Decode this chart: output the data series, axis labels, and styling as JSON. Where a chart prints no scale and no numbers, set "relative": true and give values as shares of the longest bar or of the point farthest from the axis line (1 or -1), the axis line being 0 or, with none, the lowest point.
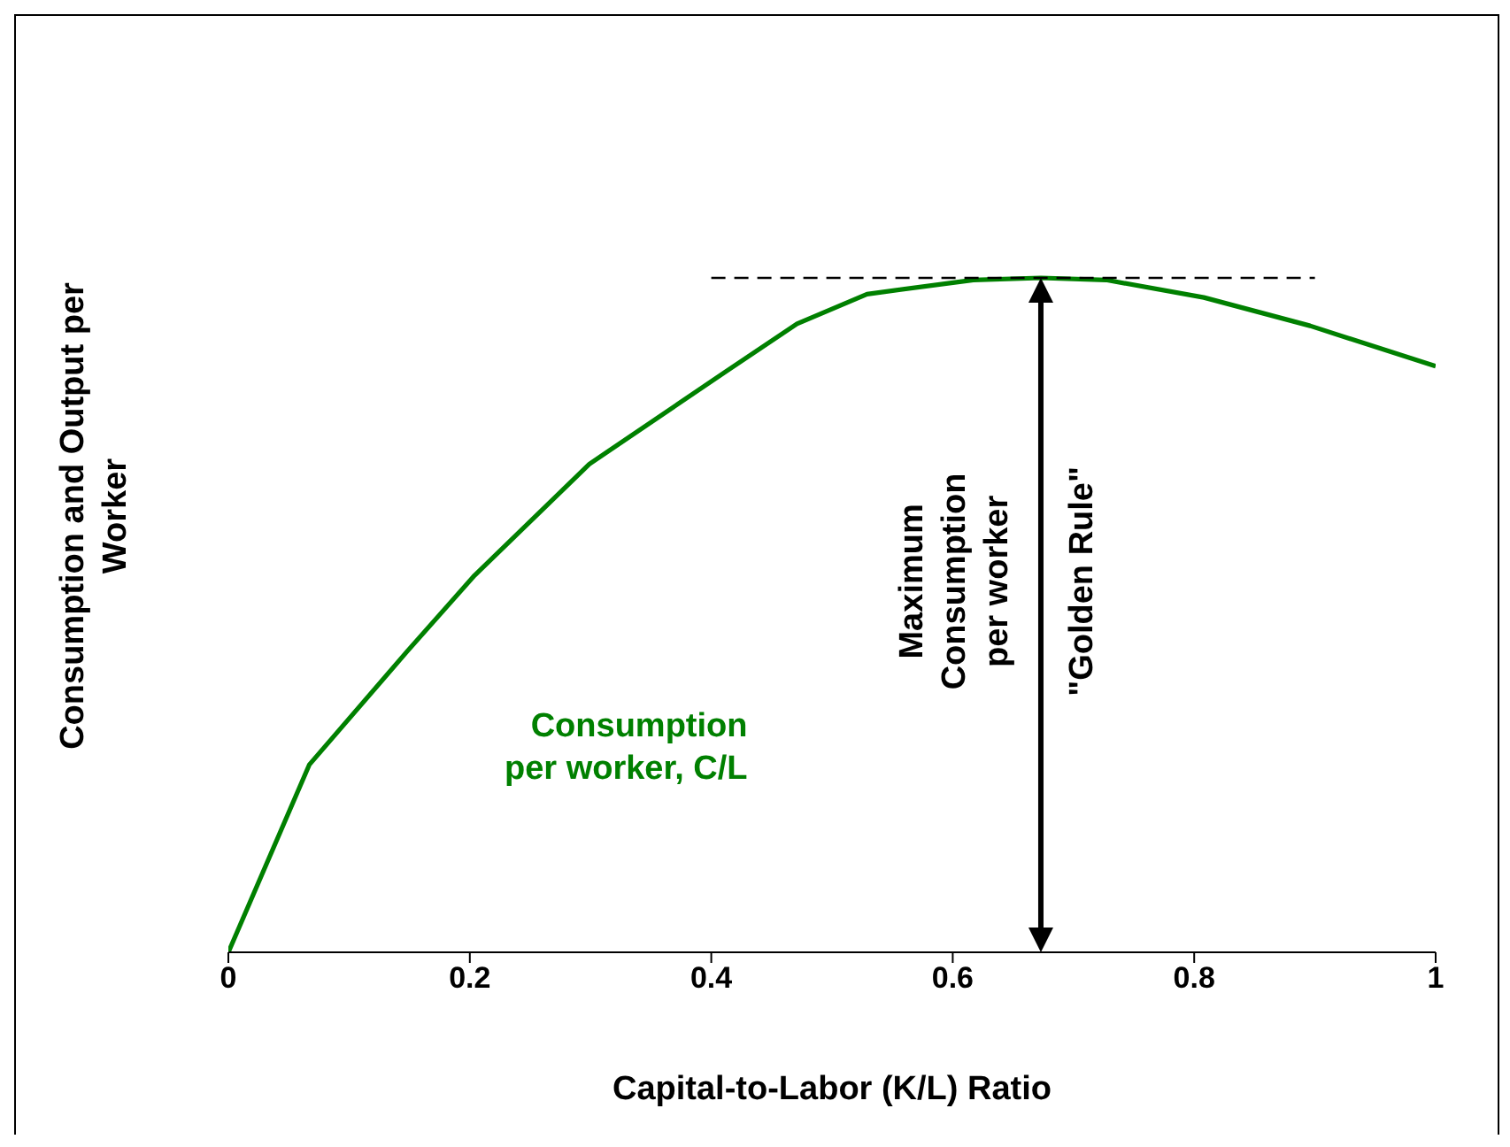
{
  "chart_data": {
    "type": "line",
    "relative": true,
    "xlabel": "Capital-to-Labor (K/L) Ratio",
    "ylabel": "Consumption and Output per Worker",
    "xlim": [
      0,
      1
    ],
    "xticks": [
      0,
      0.2,
      0.4,
      0.6,
      0.8,
      1
    ],
    "marker": "none",
    "line_style": "solid",
    "series": [
      {
        "name": "Consumption per worker, C/L",
        "color": "#008000",
        "x": [
          0,
          0.067,
          0.148,
          0.204,
          0.299,
          0.412,
          0.471,
          0.529,
          0.617,
          0.673,
          0.727,
          0.808,
          0.896,
          1.0
        ],
        "values": [
          0,
          0.278,
          0.446,
          0.559,
          0.724,
          0.861,
          0.932,
          0.976,
          0.997,
          1.0,
          0.997,
          0.971,
          0.929,
          0.869
        ]
      },
      {
        "color": "#000000",
        "line_style": "dashed",
        "x": [
          0.4,
          0.9
        ],
        "values": [
          1,
          1
        ]
      }
    ],
    "annotations": [
      "Maximum Consumption per worker",
      "\"Golden Rule\""
    ]
  }
}
